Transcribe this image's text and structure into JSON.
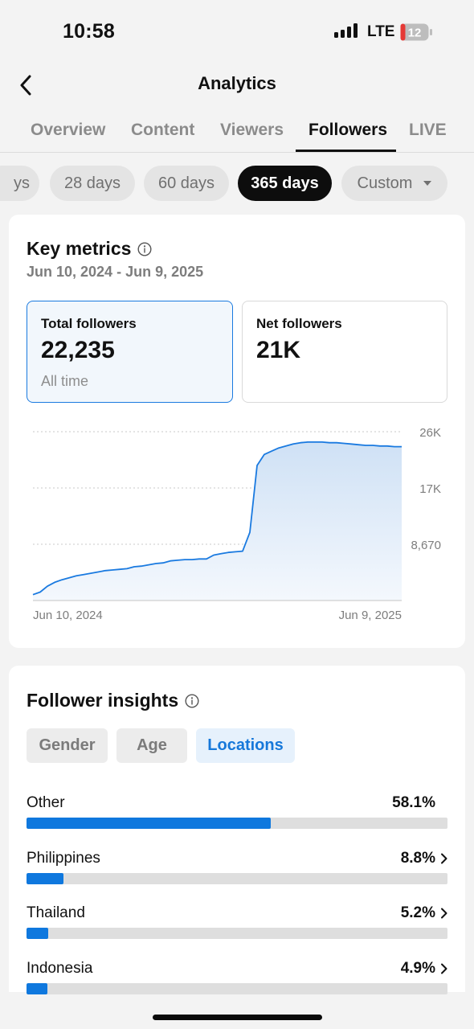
{
  "status_bar": {
    "time": "10:58",
    "network": "LTE",
    "battery": "12"
  },
  "nav": {
    "title": "Analytics"
  },
  "tabs": [
    {
      "label": "Overview",
      "active": false
    },
    {
      "label": "Content",
      "active": false
    },
    {
      "label": "Viewers",
      "active": false
    },
    {
      "label": "Followers",
      "active": true
    },
    {
      "label": "LIVE",
      "active": false
    }
  ],
  "ranges": [
    {
      "label": "ys",
      "active": false
    },
    {
      "label": "28 days",
      "active": false
    },
    {
      "label": "60 days",
      "active": false
    },
    {
      "label": "365 days",
      "active": true
    },
    {
      "label": "Custom",
      "active": false
    }
  ],
  "key_metrics": {
    "title": "Key metrics",
    "date_range": "Jun 10, 2024 - Jun 9, 2025",
    "total": {
      "label": "Total followers",
      "value": "22,235",
      "sub": "All time"
    },
    "net": {
      "label": "Net followers",
      "value": "21K"
    }
  },
  "chart_data": {
    "type": "area",
    "series": [
      {
        "values": [
          900,
          1300,
          2200,
          2800,
          3200,
          3500,
          3800,
          4000,
          4200,
          4400,
          4600,
          4700,
          4800,
          4900,
          5200,
          5300,
          5500,
          5700,
          5800,
          6100,
          6200,
          6300,
          6300,
          6400,
          6400,
          7000,
          7200,
          7400,
          7500,
          7600,
          10500,
          20800,
          22500,
          23000,
          23500,
          23800,
          24100,
          24300,
          24400,
          24400,
          24400,
          24300,
          24300,
          24200,
          24100,
          24000,
          23900,
          23900,
          23800,
          23800,
          23700,
          23700
        ]
      }
    ],
    "x_labels": [
      "Jun 10, 2024",
      "Jun 9, 2025"
    ],
    "y_ticks": [
      "26K",
      "17K",
      "8,670"
    ],
    "y_tick_values": [
      26000,
      17340,
      8670
    ],
    "ylim": [
      0,
      26000
    ],
    "grid": true,
    "colors": {
      "line": "#1a7ae0",
      "fill_top": "#cfe1f5",
      "fill_bottom": "#f4f8fd"
    }
  },
  "insights": {
    "title": "Follower insights",
    "segments": [
      {
        "label": "Gender",
        "active": false
      },
      {
        "label": "Age",
        "active": false
      },
      {
        "label": "Locations",
        "active": true
      }
    ],
    "locations": [
      {
        "name": "Other",
        "percent": "58.1%",
        "value": 58.1,
        "chevron": false
      },
      {
        "name": "Philippines",
        "percent": "8.8%",
        "value": 8.8,
        "chevron": true
      },
      {
        "name": "Thailand",
        "percent": "5.2%",
        "value": 5.2,
        "chevron": true
      },
      {
        "name": "Indonesia",
        "percent": "4.9%",
        "value": 4.9,
        "chevron": true
      }
    ]
  },
  "colors": {
    "accent": "#1a7ae0",
    "bar": "#0f78de"
  },
  "icons": [
    "signal-icon",
    "battery-icon",
    "back-arrow-icon",
    "info-icon",
    "caret-down-icon",
    "chevron-right-icon"
  ]
}
